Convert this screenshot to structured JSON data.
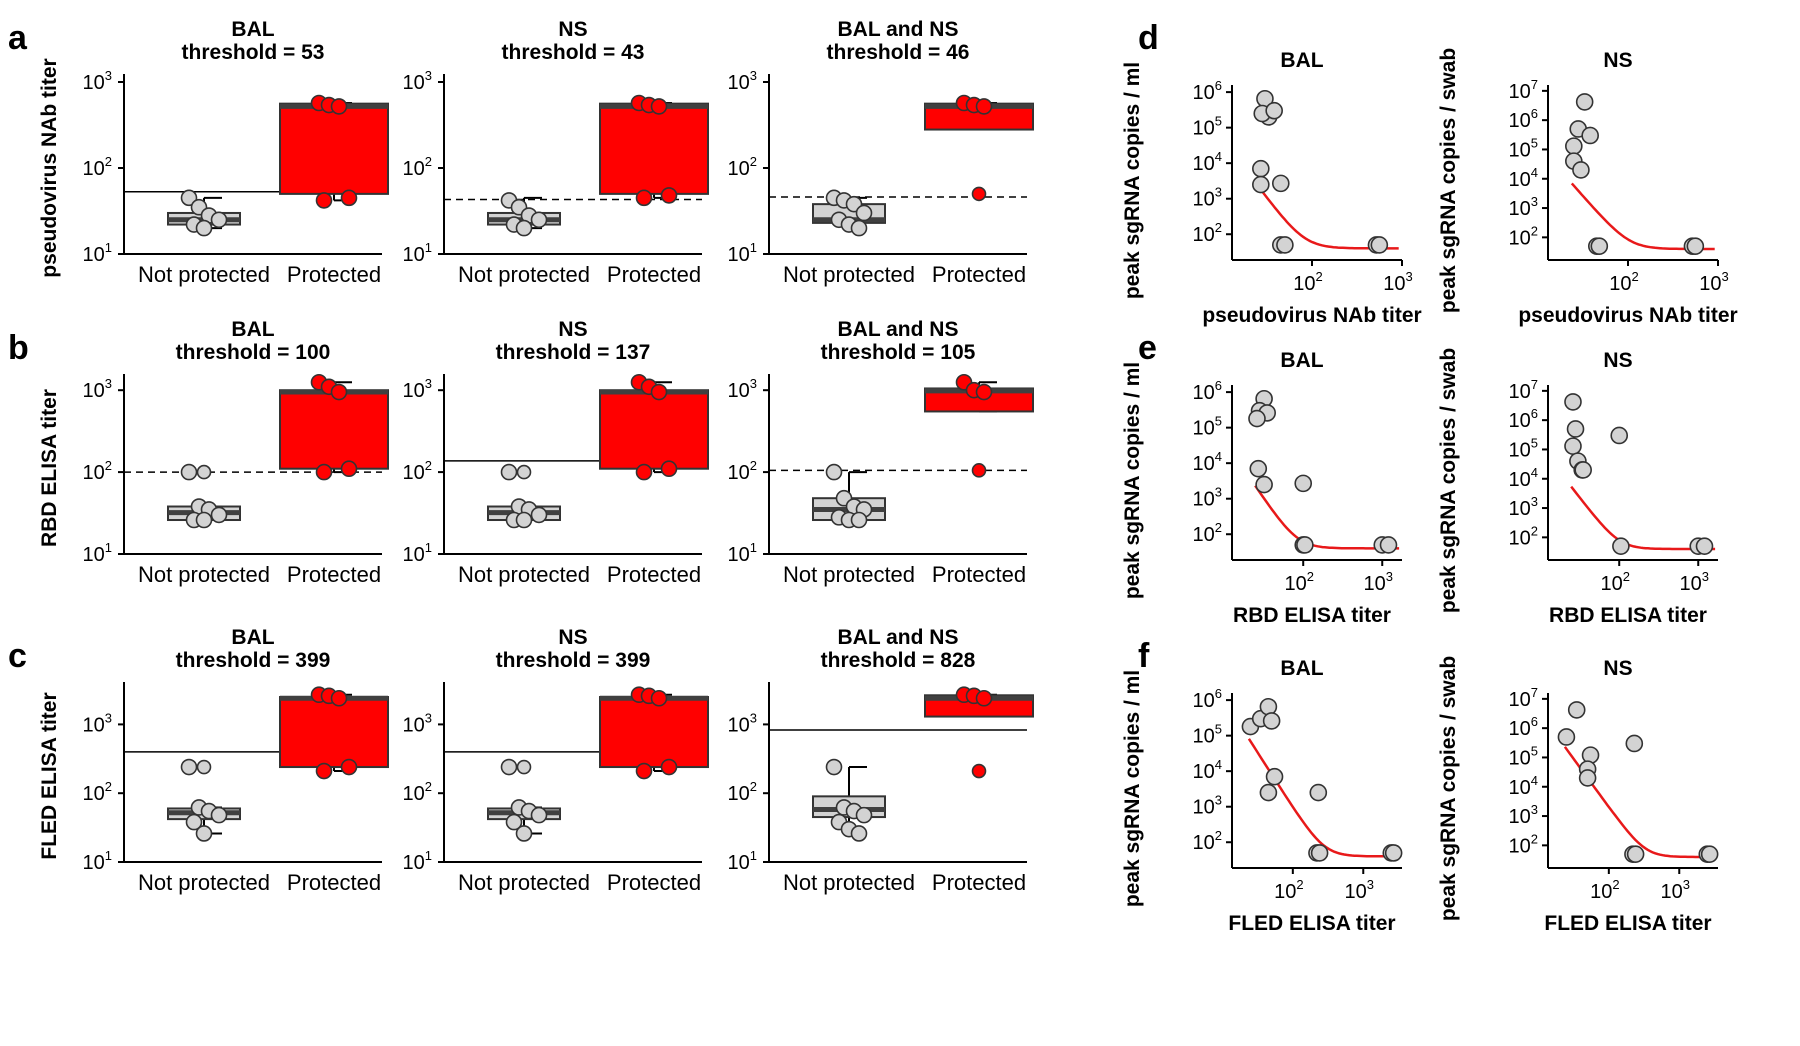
{
  "colors": {
    "protected": "#ff0000",
    "not_protected": "#d3d3d3",
    "median": "#404040",
    "fit": "#e8191a",
    "axis": "#000000"
  },
  "chart_data": [
    {
      "panel": "a",
      "type": "box",
      "title": "BAL",
      "subtitle": "threshold = 53",
      "ylabel": "pseudovirus NAb titer",
      "categories": [
        "Not protected",
        "Protected"
      ],
      "ylim_log10": [
        1,
        3
      ],
      "yticks": [
        1,
        2,
        3
      ],
      "threshold": 53,
      "threshold_style": "solid",
      "groups": [
        {
          "name": "Not protected",
          "q1": 22,
          "median": 25,
          "q3": 30,
          "whisker_low": 20,
          "whisker_high": 45,
          "points": [
            45,
            35,
            28,
            25,
            22,
            20
          ]
        },
        {
          "name": "Protected",
          "q1": 50,
          "median": 520,
          "q3": 560,
          "whisker_low": 42,
          "whisker_high": 570,
          "points": [
            570,
            540,
            520,
            45,
            42
          ]
        }
      ]
    },
    {
      "panel": "a",
      "type": "box",
      "title": "NS",
      "subtitle": "threshold = 43",
      "ylabel": "",
      "categories": [
        "Not protected",
        "Protected"
      ],
      "ylim_log10": [
        1,
        3
      ],
      "yticks": [
        1,
        2,
        3
      ],
      "threshold": 43,
      "threshold_style": "dashed",
      "groups": [
        {
          "name": "Not protected",
          "q1": 22,
          "median": 25,
          "q3": 30,
          "whisker_low": 20,
          "whisker_high": 45,
          "points": [
            42,
            35,
            28,
            25,
            22,
            20
          ]
        },
        {
          "name": "Protected",
          "q1": 50,
          "median": 520,
          "q3": 560,
          "whisker_low": 45,
          "whisker_high": 570,
          "points": [
            570,
            540,
            520,
            48,
            45
          ]
        }
      ]
    },
    {
      "panel": "a",
      "type": "box",
      "title": "BAL and NS",
      "subtitle": "threshold = 46",
      "ylabel": "",
      "categories": [
        "Not protected",
        "Protected"
      ],
      "ylim_log10": [
        1,
        3
      ],
      "yticks": [
        1,
        2,
        3
      ],
      "threshold": 46,
      "threshold_style": "dashed",
      "groups": [
        {
          "name": "Not protected",
          "q1": 23,
          "median": 25,
          "q3": 38,
          "whisker_low": 20,
          "whisker_high": 45,
          "points": [
            45,
            42,
            38,
            30,
            25,
            22,
            20
          ]
        },
        {
          "name": "Protected",
          "q1": 280,
          "median": 520,
          "q3": 560,
          "whisker_low": 280,
          "whisker_high": 570,
          "points": [
            570,
            540,
            520
          ],
          "outliers": [
            50
          ]
        }
      ]
    },
    {
      "panel": "b",
      "type": "box",
      "title": "BAL",
      "subtitle": "threshold = 100",
      "ylabel": "RBD ELISA titer",
      "categories": [
        "Not protected",
        "Protected"
      ],
      "ylim_log10": [
        1,
        3.1
      ],
      "yticks": [
        1,
        2,
        3
      ],
      "threshold": 100,
      "threshold_style": "dashed",
      "groups": [
        {
          "name": "Not protected",
          "q1": 26,
          "median": 32,
          "q3": 38,
          "whisker_low": 26,
          "whisker_high": 38,
          "points": [
            100,
            38,
            35,
            30,
            26,
            26
          ],
          "outliers": [
            100
          ]
        },
        {
          "name": "Protected",
          "q1": 110,
          "median": 950,
          "q3": 1000,
          "whisker_low": 100,
          "whisker_high": 1250,
          "points": [
            1250,
            1100,
            950,
            110,
            100
          ]
        }
      ]
    },
    {
      "panel": "b",
      "type": "box",
      "title": "NS",
      "subtitle": "threshold = 137",
      "ylabel": "",
      "categories": [
        "Not protected",
        "Protected"
      ],
      "ylim_log10": [
        1,
        3.1
      ],
      "yticks": [
        1,
        2,
        3
      ],
      "threshold": 137,
      "threshold_style": "solid",
      "groups": [
        {
          "name": "Not protected",
          "q1": 26,
          "median": 32,
          "q3": 38,
          "whisker_low": 26,
          "whisker_high": 38,
          "points": [
            100,
            38,
            35,
            30,
            26,
            26
          ],
          "outliers": [
            100
          ]
        },
        {
          "name": "Protected",
          "q1": 110,
          "median": 950,
          "q3": 1000,
          "whisker_low": 100,
          "whisker_high": 1250,
          "points": [
            1250,
            1100,
            950,
            110,
            100
          ]
        }
      ]
    },
    {
      "panel": "b",
      "type": "box",
      "title": "BAL and NS",
      "subtitle": "threshold = 105",
      "ylabel": "",
      "categories": [
        "Not protected",
        "Protected"
      ],
      "ylim_log10": [
        1,
        3.1
      ],
      "yticks": [
        1,
        2,
        3
      ],
      "threshold": 105,
      "threshold_style": "dashed",
      "groups": [
        {
          "name": "Not protected",
          "q1": 26,
          "median": 35,
          "q3": 48,
          "whisker_low": 26,
          "whisker_high": 100,
          "points": [
            100,
            48,
            38,
            35,
            28,
            26,
            26
          ]
        },
        {
          "name": "Protected",
          "q1": 550,
          "median": 980,
          "q3": 1050,
          "whisker_low": 550,
          "whisker_high": 1250,
          "points": [
            1250,
            1000,
            950
          ],
          "outliers": [
            105
          ]
        }
      ]
    },
    {
      "panel": "c",
      "type": "box",
      "title": "BAL",
      "subtitle": "threshold = 399",
      "ylabel": "FLED ELISA titer",
      "categories": [
        "Not protected",
        "Protected"
      ],
      "ylim_log10": [
        1,
        3.5
      ],
      "yticks": [
        1,
        2,
        3
      ],
      "threshold": 399,
      "threshold_style": "solid",
      "groups": [
        {
          "name": "Not protected",
          "q1": 42,
          "median": 52,
          "q3": 60,
          "whisker_low": 26,
          "whisker_high": 62,
          "points": [
            240,
            62,
            55,
            48,
            38,
            26
          ],
          "outliers": [
            240
          ]
        },
        {
          "name": "Protected",
          "q1": 240,
          "median": 2400,
          "q3": 2500,
          "whisker_low": 210,
          "whisker_high": 2700,
          "points": [
            2700,
            2600,
            2400,
            240,
            210
          ]
        }
      ]
    },
    {
      "panel": "c",
      "type": "box",
      "title": "NS",
      "subtitle": "threshold = 399",
      "ylabel": "",
      "categories": [
        "Not protected",
        "Protected"
      ],
      "ylim_log10": [
        1,
        3.5
      ],
      "yticks": [
        1,
        2,
        3
      ],
      "threshold": 399,
      "threshold_style": "solid",
      "groups": [
        {
          "name": "Not protected",
          "q1": 42,
          "median": 52,
          "q3": 60,
          "whisker_low": 26,
          "whisker_high": 62,
          "points": [
            240,
            62,
            55,
            48,
            38,
            26
          ],
          "outliers": [
            240
          ]
        },
        {
          "name": "Protected",
          "q1": 240,
          "median": 2400,
          "q3": 2500,
          "whisker_low": 210,
          "whisker_high": 2700,
          "points": [
            2700,
            2600,
            2400,
            240,
            210
          ]
        }
      ]
    },
    {
      "panel": "c",
      "type": "box",
      "title": "BAL and NS",
      "subtitle": "threshold = 828",
      "ylabel": "",
      "categories": [
        "Not protected",
        "Protected"
      ],
      "ylim_log10": [
        1,
        3.5
      ],
      "yticks": [
        1,
        2,
        3
      ],
      "threshold": 828,
      "threshold_style": "solid",
      "groups": [
        {
          "name": "Not protected",
          "q1": 45,
          "median": 58,
          "q3": 90,
          "whisker_low": 26,
          "whisker_high": 240,
          "points": [
            240,
            62,
            55,
            48,
            38,
            30,
            26
          ]
        },
        {
          "name": "Protected",
          "q1": 1300,
          "median": 2400,
          "q3": 2650,
          "whisker_low": 1300,
          "whisker_high": 2700,
          "points": [
            2700,
            2600,
            2400
          ],
          "outliers": [
            210
          ]
        }
      ]
    },
    {
      "panel": "d",
      "type": "scatter",
      "title": "BAL",
      "xlabel": "pseudovirus NAb titer",
      "ylabel": "peak sgRNA copies / ml",
      "xlim_log10": [
        1.2,
        3
      ],
      "ylim_log10": [
        1.5,
        6.2
      ],
      "xticks": [
        2,
        3
      ],
      "yticks": [
        2,
        3,
        4,
        5,
        6
      ],
      "x": [
        30,
        33,
        28,
        38,
        27,
        27,
        45,
        45,
        50,
        520,
        560
      ],
      "y": [
        650000,
        200000,
        250000,
        300000,
        7000,
        2500,
        2700,
        50,
        50,
        50,
        50
      ],
      "fit": {
        "a": 130000000.0,
        "b": -3.4
      }
    },
    {
      "panel": "d",
      "type": "scatter",
      "title": "NS",
      "xlabel": "pseudovirus NAb titer",
      "ylabel": "peak sgRNA copies / swab",
      "xlim_log10": [
        1.2,
        3
      ],
      "ylim_log10": [
        1.5,
        7.2
      ],
      "xticks": [
        2,
        3
      ],
      "yticks": [
        2,
        3,
        4,
        5,
        6,
        7
      ],
      "x": [
        33,
        25,
        25,
        30,
        28,
        38,
        45,
        48,
        520,
        560
      ],
      "y": [
        4200000,
        130000,
        40000,
        20000,
        500000,
        300000,
        50,
        50,
        50,
        50
      ],
      "fit": {
        "a": 450000000.0,
        "b": -3.5
      }
    },
    {
      "panel": "e",
      "type": "scatter",
      "title": "BAL",
      "xlabel": "RBD ELISA titer",
      "ylabel": "peak sgRNA copies / ml",
      "xlim_log10": [
        1.2,
        3.25
      ],
      "ylim_log10": [
        1.5,
        6.2
      ],
      "xticks": [
        2,
        3
      ],
      "yticks": [
        2,
        3,
        4,
        5,
        6
      ],
      "x": [
        32,
        28,
        35,
        26,
        27,
        32,
        100,
        100,
        105,
        1000,
        1200
      ],
      "y": [
        650000,
        300000,
        260000,
        180000,
        7000,
        2500,
        2700,
        50,
        50,
        50,
        50
      ],
      "fit": {
        "a": 90000000.0,
        "b": -3.3
      }
    },
    {
      "panel": "e",
      "type": "scatter",
      "title": "NS",
      "xlabel": "RBD ELISA titer",
      "ylabel": "peak sgRNA copies / swab",
      "xlim_log10": [
        1.2,
        3.25
      ],
      "ylim_log10": [
        1.5,
        7.2
      ],
      "xticks": [
        2,
        3
      ],
      "yticks": [
        2,
        3,
        4,
        5,
        6,
        7
      ],
      "x": [
        26,
        28,
        26,
        30,
        34,
        35,
        100,
        105,
        1000,
        1200
      ],
      "y": [
        4200000,
        500000,
        130000,
        40000,
        20000,
        20000,
        300000,
        50,
        50,
        50
      ],
      "fit": {
        "a": 400000000.0,
        "b": -3.5
      }
    },
    {
      "panel": "f",
      "type": "scatter",
      "title": "BAL",
      "xlabel": "FLED ELISA titer",
      "ylabel": "peak sgRNA copies / ml",
      "xlim_log10": [
        1.25,
        3.55
      ],
      "ylim_log10": [
        1.5,
        6.2
      ],
      "xticks": [
        2,
        3
      ],
      "yticks": [
        2,
        3,
        4,
        5,
        6
      ],
      "x": [
        25,
        35,
        45,
        50,
        45,
        55,
        230,
        220,
        240,
        2500,
        2700
      ],
      "y": [
        180000,
        300000,
        650000,
        260000,
        2500,
        7000,
        2500,
        50,
        50,
        50,
        50
      ],
      "fit": {
        "a": 1500000000.0,
        "b": -3.1
      }
    },
    {
      "panel": "f",
      "type": "scatter",
      "title": "NS",
      "xlabel": "FLED ELISA titer",
      "ylabel": "peak sgRNA copies / swab",
      "xlim_log10": [
        1.25,
        3.55
      ],
      "ylim_log10": [
        1.5,
        7.2
      ],
      "xticks": [
        2,
        3
      ],
      "yticks": [
        2,
        3,
        4,
        5,
        6,
        7
      ],
      "x": [
        25,
        35,
        55,
        50,
        50,
        230,
        220,
        240,
        2500,
        2700
      ],
      "y": [
        500000,
        4200000,
        120000,
        40000,
        20000,
        300000,
        50,
        50,
        50,
        50
      ],
      "fit": {
        "a": 8000000000.0,
        "b": -3.3
      }
    }
  ],
  "panel_labels": [
    "a",
    "b",
    "c",
    "d",
    "e",
    "f"
  ]
}
